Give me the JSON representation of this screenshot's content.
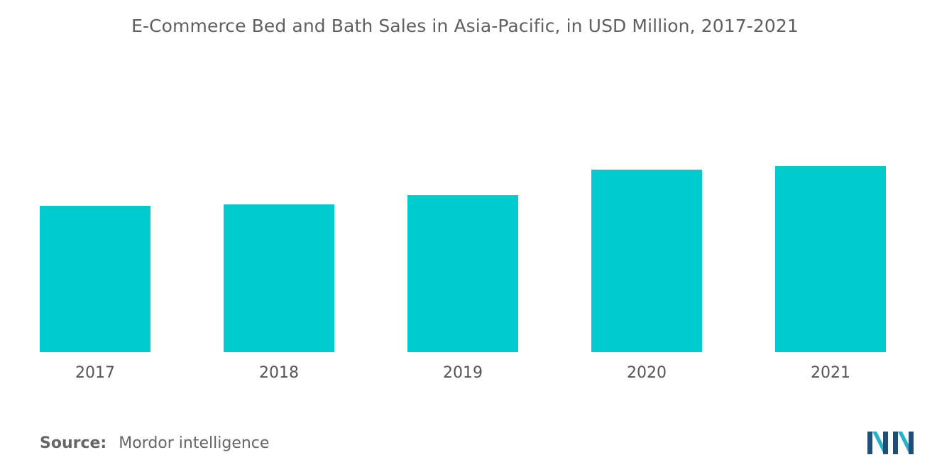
{
  "chart_data": {
    "type": "bar",
    "title": "E-Commerce Bed and Bath Sales in Asia-Pacific, in USD Million, 2017-2021",
    "categories": [
      "2017",
      "2018",
      "2019",
      "2020",
      "2021"
    ],
    "values": [
      206,
      208,
      221,
      257,
      262
    ],
    "xlabel": "",
    "ylabel": "",
    "ylim": [
      0,
      400
    ],
    "grid": false,
    "legend": "none",
    "bar_color": "#00CCD0"
  },
  "source": {
    "label": "Source:",
    "value": "Mordor intelligence"
  },
  "logo": {
    "icon": "mordor-intelligence-logo-icon",
    "colors": [
      "#1F4E79",
      "#2AB3C6"
    ]
  }
}
